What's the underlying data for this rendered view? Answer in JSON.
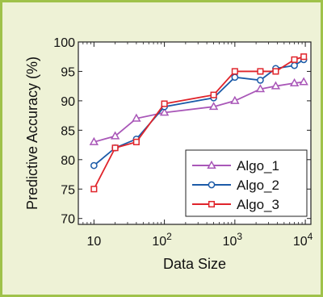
{
  "chart_data": {
    "type": "line",
    "xlabel": "Data Size",
    "ylabel": "Predictive Accuracy (%)",
    "xscale": "log",
    "xlim": [
      6,
      12000
    ],
    "ylim": [
      69,
      100
    ],
    "grid": false,
    "legend_position": "bottom-right",
    "x_ticks": [
      {
        "value": 10,
        "label": "10",
        "exp": ""
      },
      {
        "value": 100,
        "label": "10",
        "exp": "2"
      },
      {
        "value": 1000,
        "label": "10",
        "exp": "3"
      },
      {
        "value": 10000,
        "label": "10",
        "exp": "4"
      }
    ],
    "y_ticks": [
      70,
      75,
      80,
      85,
      90,
      95,
      100
    ],
    "series": [
      {
        "name": "Algo_1",
        "color": "#a957b8",
        "marker": "triangle",
        "points": [
          [
            10,
            83
          ],
          [
            20,
            84
          ],
          [
            40,
            87
          ],
          [
            100,
            88
          ],
          [
            500,
            89
          ],
          [
            1000,
            90
          ],
          [
            2300,
            92
          ],
          [
            3800,
            92.5
          ],
          [
            7000,
            93
          ],
          [
            9500,
            93.2
          ]
        ]
      },
      {
        "name": "Algo_2",
        "color": "#1c5ba8",
        "marker": "circle",
        "points": [
          [
            10,
            79
          ],
          [
            20,
            82
          ],
          [
            40,
            83.5
          ],
          [
            100,
            89
          ],
          [
            500,
            90.5
          ],
          [
            1000,
            94
          ],
          [
            2300,
            93.5
          ],
          [
            3800,
            95.5
          ],
          [
            7000,
            96
          ],
          [
            9500,
            97
          ]
        ]
      },
      {
        "name": "Algo_3",
        "color": "#e0242b",
        "marker": "square",
        "points": [
          [
            10,
            75
          ],
          [
            20,
            82
          ],
          [
            40,
            83
          ],
          [
            100,
            89.5
          ],
          [
            500,
            91
          ],
          [
            1000,
            95
          ],
          [
            2300,
            95
          ],
          [
            3800,
            95
          ],
          [
            7000,
            97
          ],
          [
            9500,
            97.5
          ]
        ]
      }
    ]
  }
}
